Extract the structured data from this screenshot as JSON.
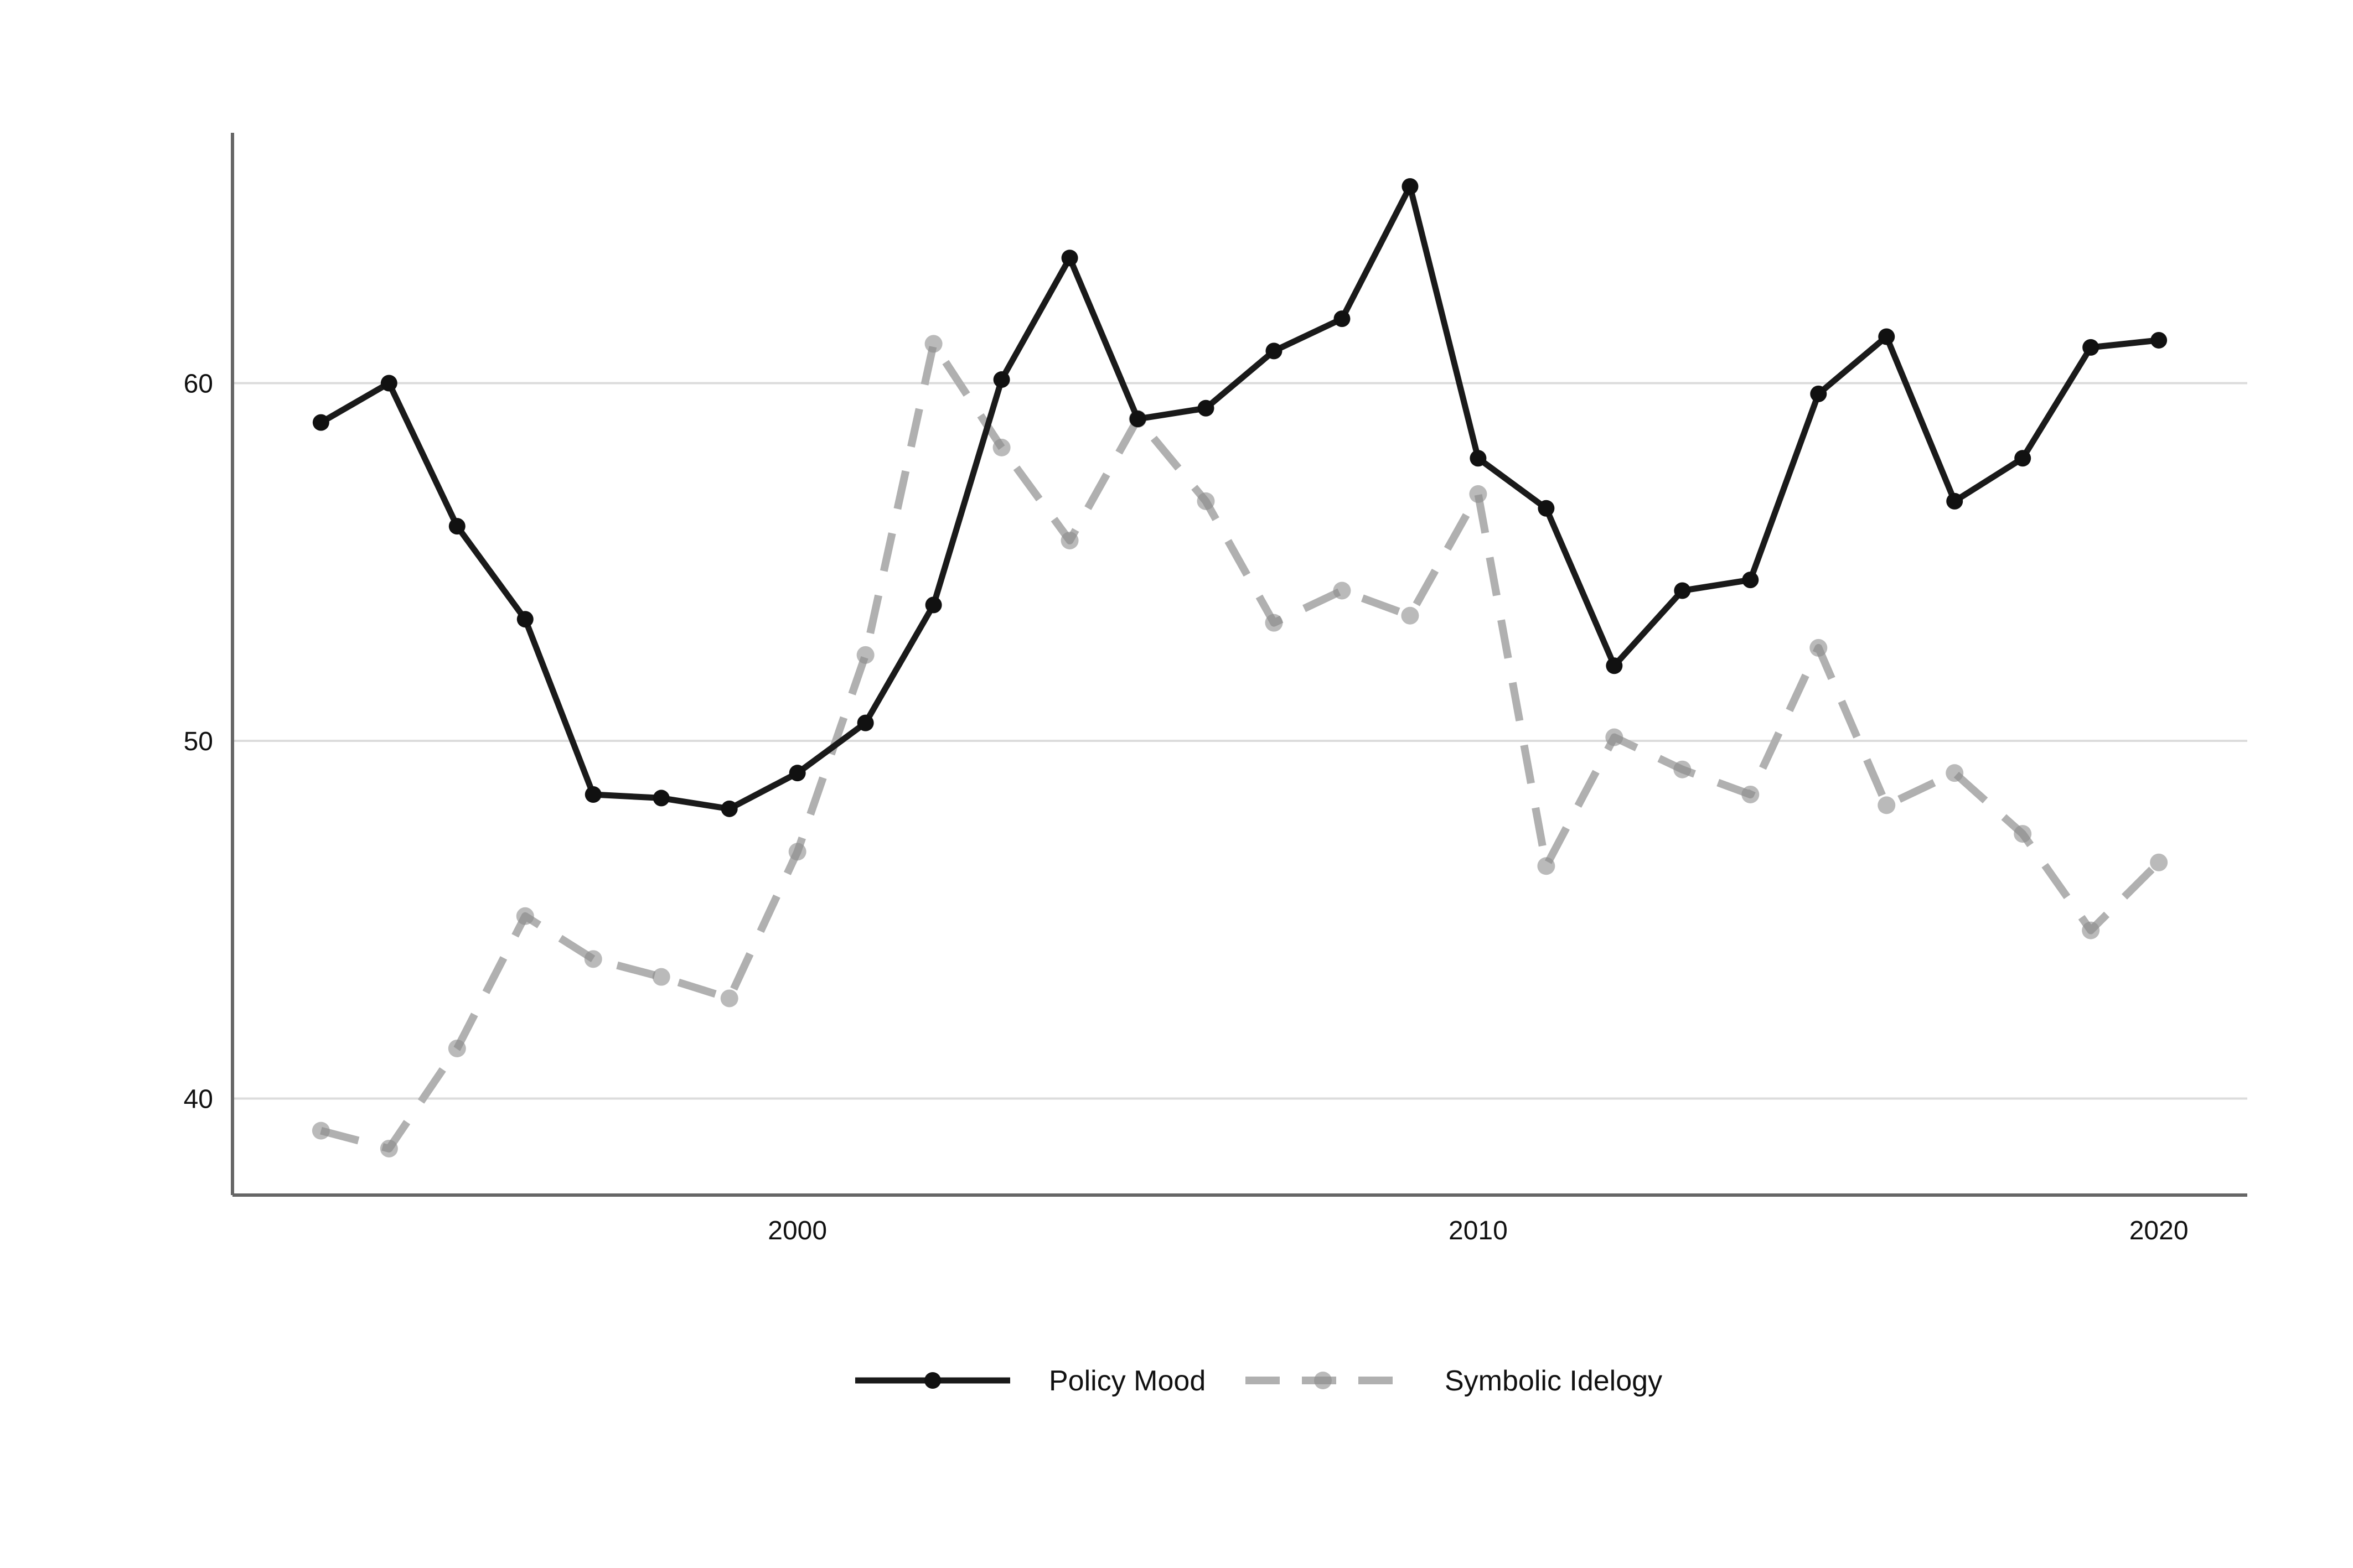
{
  "chart_data": {
    "type": "line",
    "title": "",
    "xlabel": "",
    "ylabel": "",
    "x": [
      1993,
      1994,
      1995,
      1996,
      1997,
      1998,
      1999,
      2000,
      2001,
      2002,
      2003,
      2004,
      2005,
      2006,
      2007,
      2008,
      2009,
      2010,
      2011,
      2012,
      2013,
      2014,
      2015,
      2016,
      2017,
      2018,
      2019,
      2020
    ],
    "series": [
      {
        "name": "Policy Mood",
        "style": "solid",
        "color": "#1a1a1a",
        "values": [
          58.9,
          60.0,
          56.0,
          53.4,
          48.5,
          48.4,
          48.1,
          49.1,
          50.5,
          53.8,
          60.1,
          63.5,
          59.0,
          59.3,
          60.9,
          61.8,
          65.5,
          57.9,
          56.5,
          52.1,
          54.2,
          54.5,
          59.7,
          61.3,
          56.7,
          57.9,
          61.0,
          61.2
        ]
      },
      {
        "name": "Symbolic Idelogy",
        "style": "dashed",
        "color": "#b0b0b0",
        "values": [
          39.1,
          38.6,
          41.4,
          45.1,
          43.9,
          43.4,
          42.8,
          46.9,
          52.4,
          61.1,
          58.2,
          55.6,
          59.0,
          56.7,
          53.3,
          54.2,
          53.5,
          56.9,
          46.5,
          50.1,
          49.2,
          48.5,
          52.6,
          48.2,
          49.1,
          47.4,
          44.7,
          46.6
        ]
      }
    ],
    "xlim": [
      1991.7,
      2021.3
    ],
    "ylim": [
      37.3,
      67.0
    ],
    "x_ticks": [
      2000,
      2010,
      2020
    ],
    "y_ticks": [
      40,
      50,
      60
    ],
    "grid": "horizontal",
    "legend_position": "bottom"
  }
}
